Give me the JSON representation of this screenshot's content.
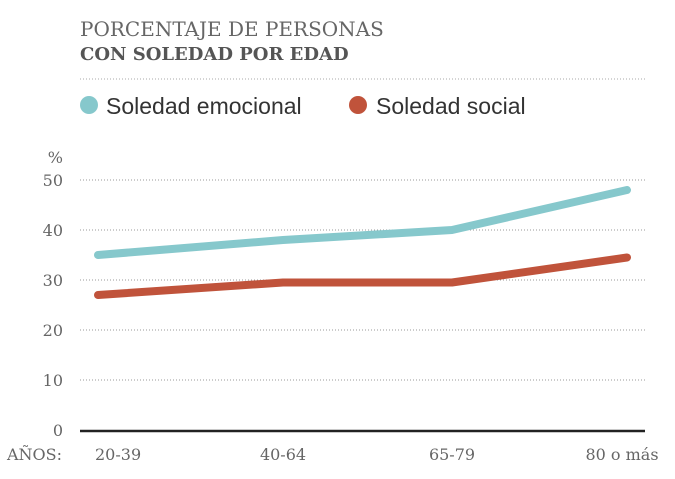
{
  "chart_data": {
    "type": "line",
    "title_line1": "PORCENTAJE DE PERSONAS",
    "title_line2": "CON SOLEDAD POR EDAD",
    "ylabel": "%",
    "xlabel": "AÑOS:",
    "categories": [
      "20-39",
      "40-64",
      "65-79",
      "80 o más"
    ],
    "yticks": [
      0,
      10,
      20,
      30,
      40,
      50
    ],
    "ylim": [
      0,
      50
    ],
    "grid": true,
    "legend_position": "top-left",
    "series": [
      {
        "name": "Soledad emocional",
        "color": "#86c8cc",
        "values": [
          35,
          38,
          40,
          48
        ]
      },
      {
        "name": "Soledad social",
        "color": "#c0533b",
        "values": [
          27,
          29.5,
          29.5,
          34.5
        ]
      }
    ]
  }
}
